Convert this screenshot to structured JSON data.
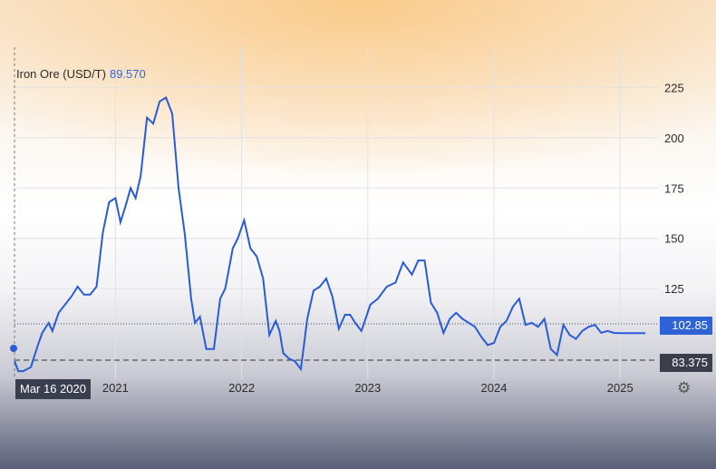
{
  "legend": {
    "name": "Iron Ore (USD/T)",
    "value": "89.570"
  },
  "badges": {
    "last": "102.85",
    "low": "83.375",
    "date": "Mar 16 2020"
  },
  "icons": {
    "settings": "gear-icon"
  },
  "colors": {
    "line": "#2a5bd7",
    "last_badge": "#2d63d6",
    "dark_badge": "#3b3f4c"
  },
  "chart_data": {
    "type": "line",
    "title": "Iron Ore (USD/T)",
    "ylim": [
      80,
      245
    ],
    "yticks": [
      125,
      150,
      175,
      200,
      225
    ],
    "xticks": [
      {
        "label": "2021",
        "x": 2021.0
      },
      {
        "label": "2022",
        "x": 2022.0
      },
      {
        "label": "2023",
        "x": 2023.0
      },
      {
        "label": "2024",
        "x": 2024.0
      },
      {
        "label": "2025",
        "x": 2025.0
      }
    ],
    "xlim": [
      2020.2,
      2025.3
    ],
    "grid": true,
    "series": [
      {
        "name": "Iron Ore (USD/T)",
        "x": [
          2020.2,
          2020.23,
          2020.27,
          2020.33,
          2020.38,
          2020.42,
          2020.47,
          2020.5,
          2020.55,
          2020.6,
          2020.65,
          2020.7,
          2020.75,
          2020.8,
          2020.85,
          2020.9,
          2020.95,
          2021.0,
          2021.04,
          2021.08,
          2021.12,
          2021.16,
          2021.2,
          2021.25,
          2021.3,
          2021.35,
          2021.4,
          2021.45,
          2021.5,
          2021.55,
          2021.6,
          2021.63,
          2021.67,
          2021.72,
          2021.78,
          2021.83,
          2021.87,
          2021.9,
          2021.93,
          2021.97,
          2022.02,
          2022.07,
          2022.12,
          2022.17,
          2022.22,
          2022.27,
          2022.3,
          2022.33,
          2022.38,
          2022.42,
          2022.47,
          2022.52,
          2022.57,
          2022.62,
          2022.67,
          2022.72,
          2022.77,
          2022.82,
          2022.86,
          2022.9,
          2022.95,
          2023.02,
          2023.08,
          2023.15,
          2023.22,
          2023.28,
          2023.35,
          2023.4,
          2023.45,
          2023.5,
          2023.55,
          2023.6,
          2023.65,
          2023.7,
          2023.75,
          2023.8,
          2023.85,
          2023.9,
          2023.95,
          2024.0,
          2024.05,
          2024.1,
          2024.15,
          2024.2,
          2024.25,
          2024.3,
          2024.35,
          2024.4,
          2024.45,
          2024.5,
          2024.55,
          2024.6,
          2024.65,
          2024.7,
          2024.75,
          2024.8,
          2024.85,
          2024.9,
          2024.95,
          2025.0,
          2025.05,
          2025.1,
          2025.15,
          2025.2
        ],
        "y": [
          89,
          84,
          84,
          86,
          96,
          103,
          108,
          104,
          113,
          117,
          121,
          126,
          122,
          122,
          126,
          153,
          168,
          170,
          158,
          166,
          175,
          170,
          181,
          210,
          207,
          218,
          220,
          212,
          175,
          152,
          120,
          108,
          111,
          95,
          95,
          120,
          125,
          135,
          145,
          150,
          159,
          145,
          141,
          130,
          102,
          109,
          104,
          93,
          90,
          89,
          85,
          110,
          124,
          126,
          130,
          121,
          105,
          112,
          112,
          108,
          104,
          117,
          120,
          126,
          128,
          138,
          132,
          139,
          139,
          118,
          113,
          103,
          110,
          113,
          110,
          108,
          106,
          101,
          97,
          98,
          106,
          109,
          116,
          120,
          107,
          108,
          106,
          110,
          95,
          92,
          107,
          102,
          100,
          104,
          106,
          107,
          103,
          104,
          103,
          102.85,
          102.85,
          102.85,
          102.85,
          102.85
        ]
      }
    ]
  }
}
